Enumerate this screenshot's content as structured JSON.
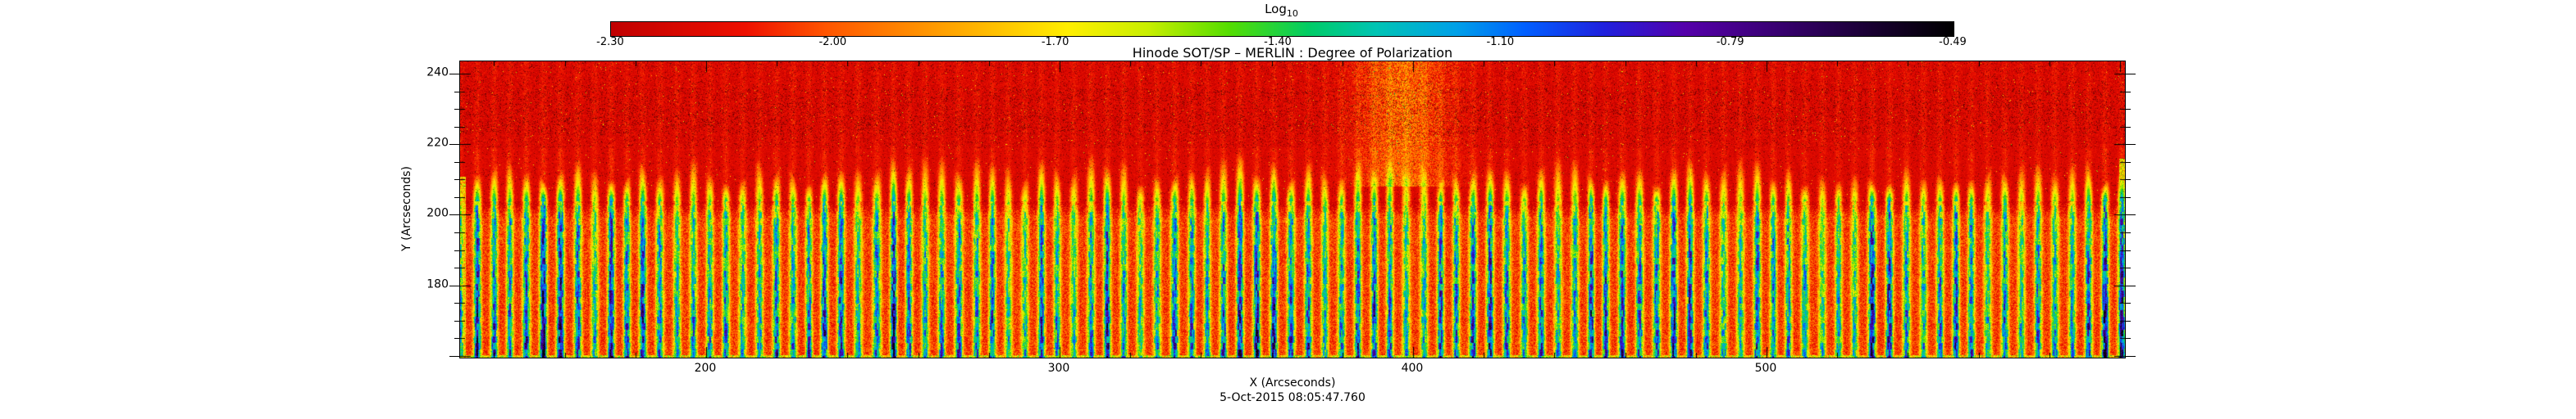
{
  "chart_data": {
    "type": "heatmap",
    "title": "Hinode SOT/SP – MERLIN : Degree of Polarization",
    "subtitle": "5-Oct-2015 08:05:47.760",
    "xlabel": "X (Arcseconds)",
    "ylabel": "Y (Arcseconds)",
    "x_range": [
      130.4,
      601.4
    ],
    "y_range": [
      159.5,
      243.5
    ],
    "x_ticks": [
      200,
      300,
      400,
      500
    ],
    "y_ticks": [
      180,
      200,
      220,
      240
    ],
    "x_major_step": 100,
    "x_minor_step": 20,
    "y_major_step": 20,
    "y_minor_step": 5,
    "grid": false,
    "colorbar": {
      "label_main": "Log",
      "label_sub": "10",
      "position": "top",
      "domain": [
        -2.3,
        -0.49
      ],
      "tick_labels": [
        "-2.30",
        "-2.00",
        "-1.70",
        "-1.40",
        "-1.10",
        "-0.79",
        "-0.49"
      ],
      "stops": [
        [
          0.0,
          "#c00000"
        ],
        [
          0.1,
          "#ee1000"
        ],
        [
          0.16,
          "#ff5500"
        ],
        [
          0.22,
          "#ff8800"
        ],
        [
          0.28,
          "#ffbb00"
        ],
        [
          0.34,
          "#ffee00"
        ],
        [
          0.4,
          "#c8ee00"
        ],
        [
          0.46,
          "#55dd00"
        ],
        [
          0.52,
          "#00cc66"
        ],
        [
          0.57,
          "#00c4b4"
        ],
        [
          0.63,
          "#00a0e8"
        ],
        [
          0.68,
          "#0060ff"
        ],
        [
          0.74,
          "#2020dd"
        ],
        [
          0.8,
          "#5500aa"
        ],
        [
          0.87,
          "#380070"
        ],
        [
          0.94,
          "#180030"
        ],
        [
          1.0,
          "#000000"
        ]
      ]
    },
    "features": {
      "description": "Solar degree-of-polarization map: regular vertical stripes of enhanced polarization (yellow/green cores) below y≈205 arcsec, flame-like yellow stripe tips fading upward between y≈204-219, and a red low-polarization canopy with dark-red speckle above y≈219; slightly brighter patch near x≈397 in the upper region.",
      "stripe_period_arcsec": 4.7,
      "bands": [
        {
          "name": "upper-canopy",
          "y": [
            219.0,
            243.5
          ],
          "log10_dop": [
            -2.3,
            -2.08
          ]
        },
        {
          "name": "flame-tips",
          "y": [
            204.0,
            219.0
          ],
          "log10_dop": [
            -2.28,
            -1.4
          ]
        },
        {
          "name": "striped-plage",
          "y": [
            159.5,
            204.0
          ],
          "log10_dop": [
            -2.2,
            -1.05
          ]
        }
      ],
      "bright_patch": {
        "x": 397,
        "y_min": 208,
        "boost": 0.3
      }
    }
  }
}
